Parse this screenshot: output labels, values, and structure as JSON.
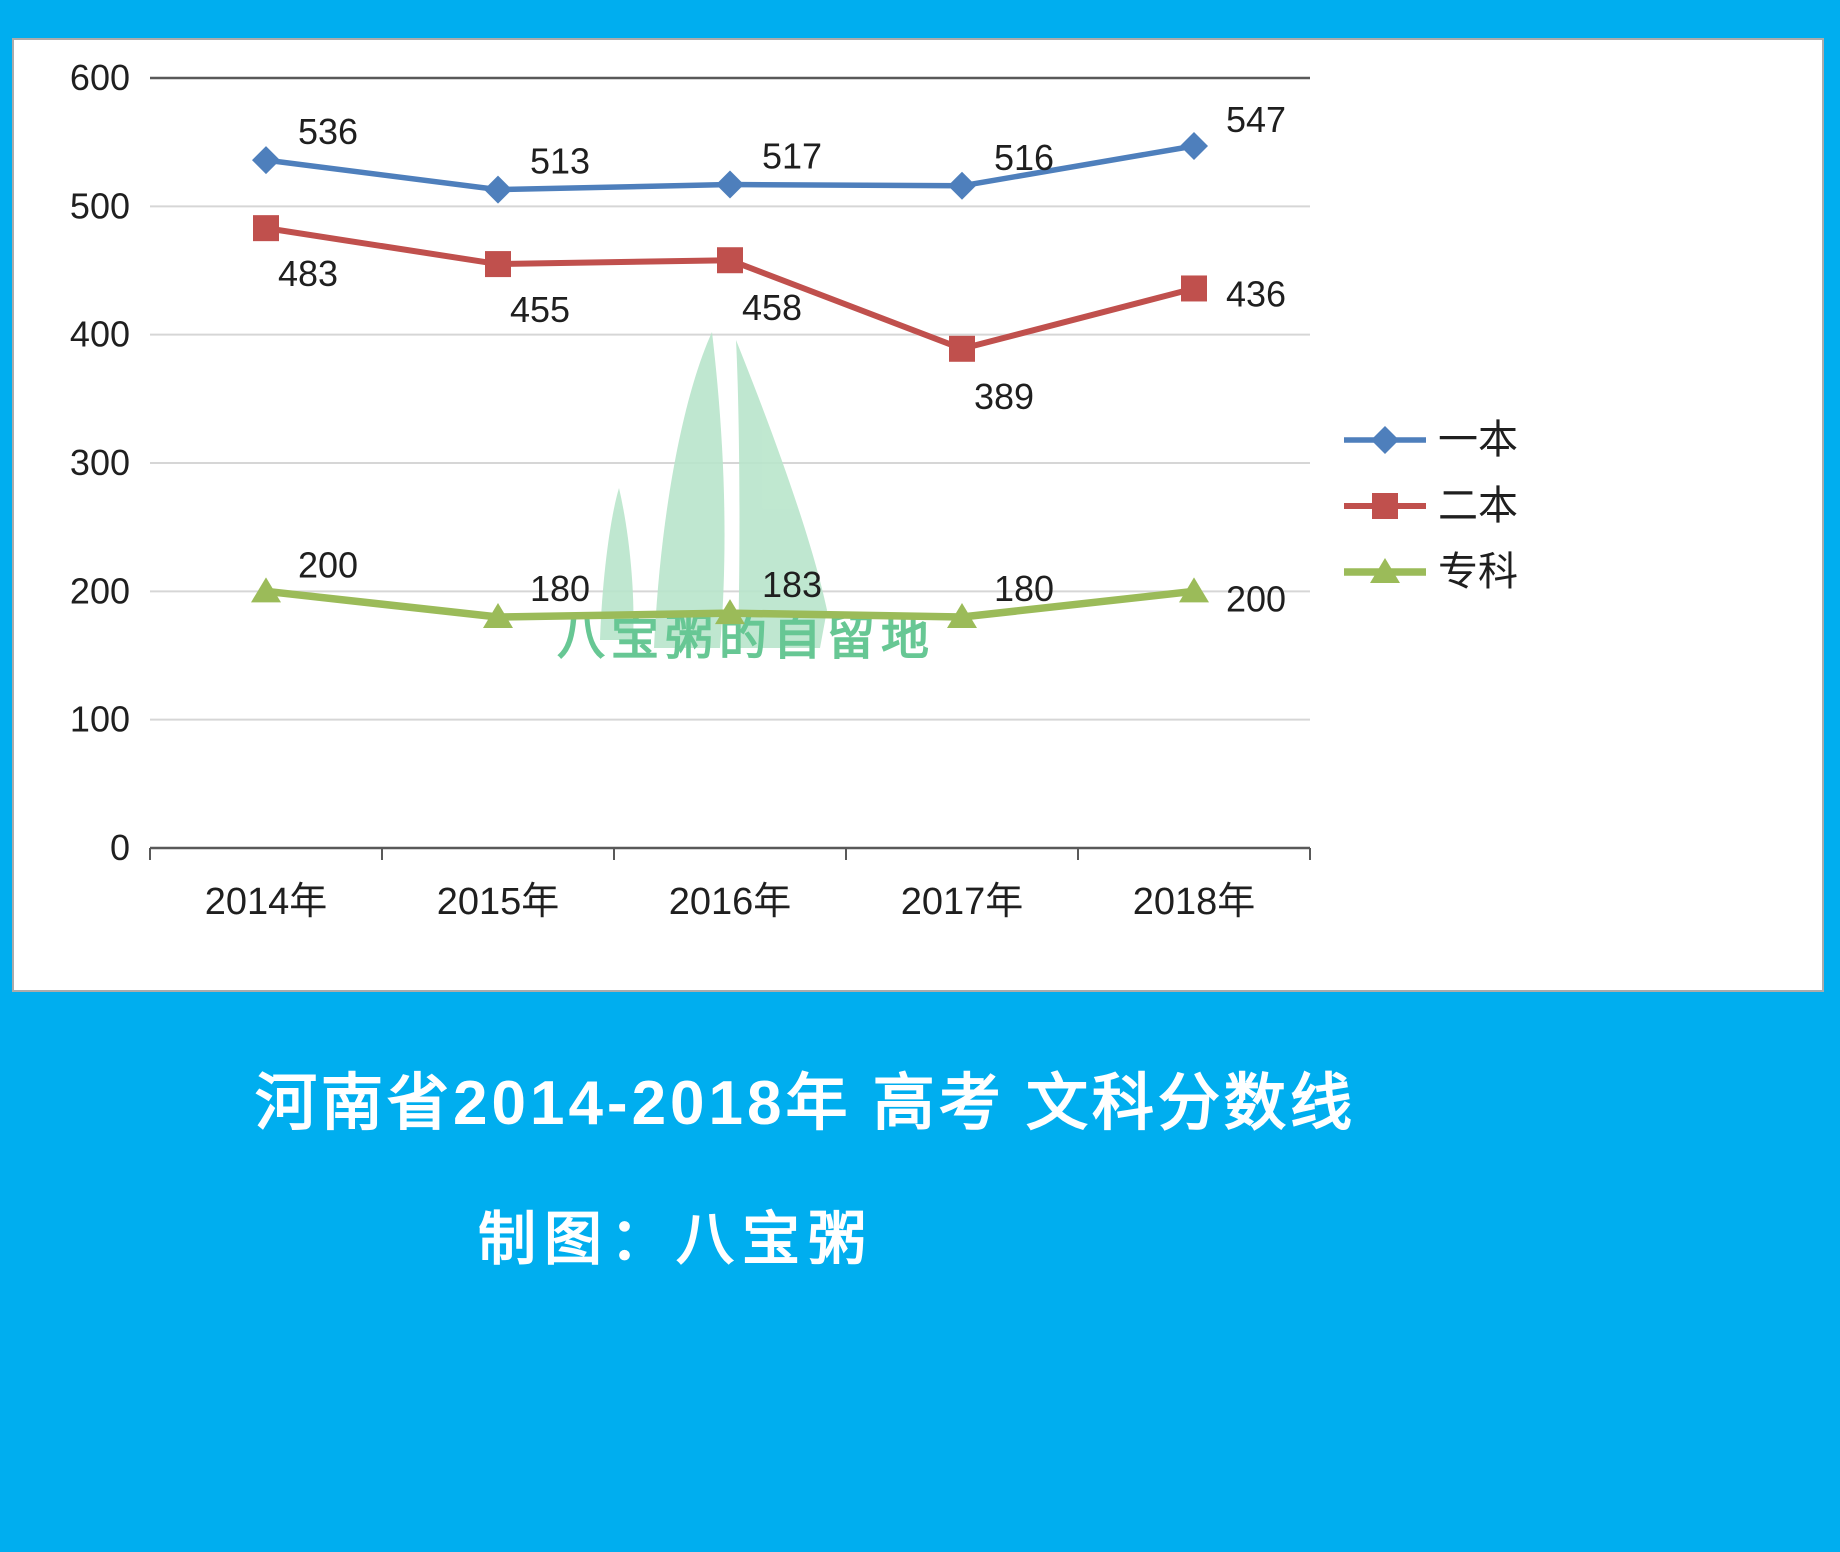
{
  "footer": {
    "title": "河南省2014-2018年 高考 文科分数线",
    "credit": "制图：八宝粥"
  },
  "watermark": {
    "text": "八宝粥的自留地"
  },
  "colors": {
    "page_background": "#00aeef",
    "panel_background": "#ffffff",
    "grid": "#d6d6d6",
    "axis": "#595959",
    "label": "#1f1f1f",
    "watermark_fill": "#b9e5cb",
    "watermark_text": "#57c189"
  },
  "chart_data": {
    "type": "line",
    "title": "河南省2014-2018年 高考 文科分数线",
    "categories": [
      "2014年",
      "2015年",
      "2016年",
      "2017年",
      "2018年"
    ],
    "series": [
      {
        "name": "一本",
        "marker": "diamond",
        "color": "#4e7fbc",
        "values": [
          536,
          513,
          517,
          516,
          547
        ]
      },
      {
        "name": "二本",
        "marker": "square",
        "color": "#c0504d",
        "values": [
          483,
          455,
          458,
          389,
          436
        ]
      },
      {
        "name": "专科",
        "marker": "triangle",
        "color": "#9bbb59",
        "values": [
          200,
          180,
          183,
          180,
          200
        ]
      }
    ],
    "ylim": [
      0,
      600
    ],
    "ytick_interval": 100,
    "yticks": [
      0,
      100,
      200,
      300,
      400,
      500,
      600
    ],
    "grid": true,
    "legend_position": "right",
    "xlabel": "",
    "ylabel": ""
  }
}
